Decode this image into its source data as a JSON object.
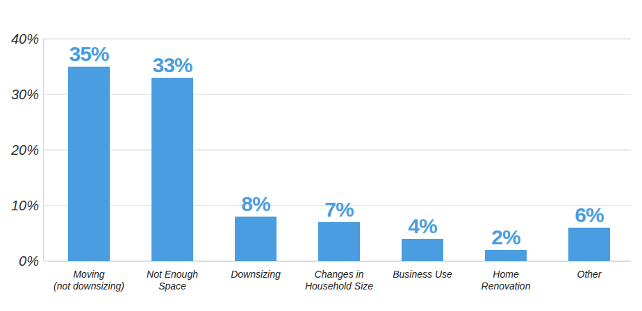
{
  "chart_data": {
    "type": "bar",
    "categories": [
      "Moving\n(not downsizing)",
      "Not Enough\nSpace",
      "Downsizing",
      "Changes in\nHousehold Size",
      "Business Use",
      "Home\nRenovation",
      "Other"
    ],
    "values": [
      35,
      33,
      8,
      7,
      4,
      2,
      6
    ],
    "value_labels": [
      "35%",
      "33%",
      "8%",
      "7%",
      "4%",
      "2%",
      "6%"
    ],
    "data_labels": true,
    "color": "#4a9de0",
    "ylim": [
      0,
      40
    ],
    "yticks": [
      {
        "value": 0,
        "label": "0%"
      },
      {
        "value": 10,
        "label": "10%"
      },
      {
        "value": 20,
        "label": "20%"
      },
      {
        "value": 30,
        "label": "30%"
      },
      {
        "value": 40,
        "label": "40%"
      }
    ],
    "grid": true
  }
}
